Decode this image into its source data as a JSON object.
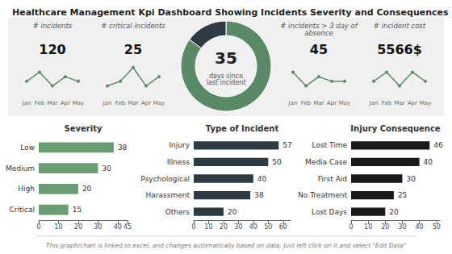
{
  "title": "Healthcare Management Kpi Dashboard Showing Incidents Severity and Consequences",
  "annotations": [
    "This graph/chart is linked to excel, and changes automatically based on data. Just left click on it and select \"Edit Data\""
  ],
  "chart_data": [
    {
      "type": "line",
      "title": "# incidents",
      "annotations": [
        "120"
      ],
      "categories": [
        "Jan",
        "Feb",
        "Mar",
        "Apr",
        "May"
      ],
      "values": [
        3,
        5,
        2,
        4,
        3
      ],
      "color": "#5a8a65",
      "marker": "circle",
      "line_style": "solid",
      "ylim": [
        0,
        7
      ],
      "tick_labels": "x",
      "grid": false
    },
    {
      "type": "line",
      "title": "# critical incidents",
      "annotations": [
        "25"
      ],
      "categories": [
        "Jan",
        "Feb",
        "Mar",
        "Apr",
        "May"
      ],
      "values": [
        2,
        3,
        6,
        2,
        4
      ],
      "color": "#5a8a65",
      "marker": "circle",
      "line_style": "solid",
      "ylim": [
        0,
        7
      ],
      "tick_labels": "x",
      "grid": false
    },
    {
      "type": "line",
      "title": "# incidents > 3 day of\nabsence",
      "annotations": [
        "45"
      ],
      "categories": [
        "Jan",
        "Feb",
        "Mar",
        "Apr",
        "May"
      ],
      "values": [
        5,
        2,
        4,
        3,
        3
      ],
      "color": "#5a8a65",
      "marker": "circle",
      "line_style": "solid",
      "ylim": [
        0,
        7
      ],
      "tick_labels": "x",
      "grid": false
    },
    {
      "type": "line",
      "title": "# incident cost",
      "annotations": [
        "5566$"
      ],
      "categories": [
        "Jan",
        "Feb",
        "Mar",
        "Apr",
        "May"
      ],
      "values": [
        3,
        5,
        2,
        5,
        3
      ],
      "color": "#5a8a65",
      "marker": "circle",
      "line_style": "solid",
      "ylim": [
        0,
        7
      ],
      "tick_labels": "x",
      "grid": false
    },
    {
      "type": "pie",
      "annotations": [
        "35",
        "days since\nlast incident"
      ],
      "values": [
        0.85,
        0.15
      ],
      "colors": [
        "#5a8a65",
        "#2d3b45"
      ]
    },
    {
      "type": "bar",
      "orientation": "horizontal",
      "title": "Severity",
      "categories": [
        "Low",
        "Medium",
        "High",
        "Critical"
      ],
      "values": [
        38,
        30,
        20,
        15
      ],
      "color": "#6a9e72",
      "xlim": [
        0,
        45
      ],
      "xticks": [
        0,
        10,
        20,
        30,
        40
      ],
      "data_labels": true,
      "grid": false
    },
    {
      "type": "bar",
      "orientation": "horizontal",
      "title": "Type of Incident",
      "categories": [
        "Injury",
        "Illness",
        "Psychological",
        "Harassment",
        "Others"
      ],
      "values": [
        57,
        50,
        40,
        38,
        20
      ],
      "color": "#2d3b45",
      "xlim": [
        0,
        65
      ],
      "xticks": [
        0,
        10,
        20,
        30,
        40,
        50,
        60
      ],
      "data_labels": true,
      "grid": false
    },
    {
      "type": "bar",
      "orientation": "horizontal",
      "title": "Injury Consequence",
      "categories": [
        "Lost Time",
        "Media Case",
        "First Aid",
        "No Treatment",
        "Lost Days"
      ],
      "values": [
        46,
        40,
        30,
        25,
        20
      ],
      "color": "#1a1a1a",
      "xlim": [
        0,
        52
      ],
      "xticks": [
        0,
        10,
        20,
        30,
        40,
        50
      ],
      "data_labels": true,
      "grid": false
    }
  ]
}
